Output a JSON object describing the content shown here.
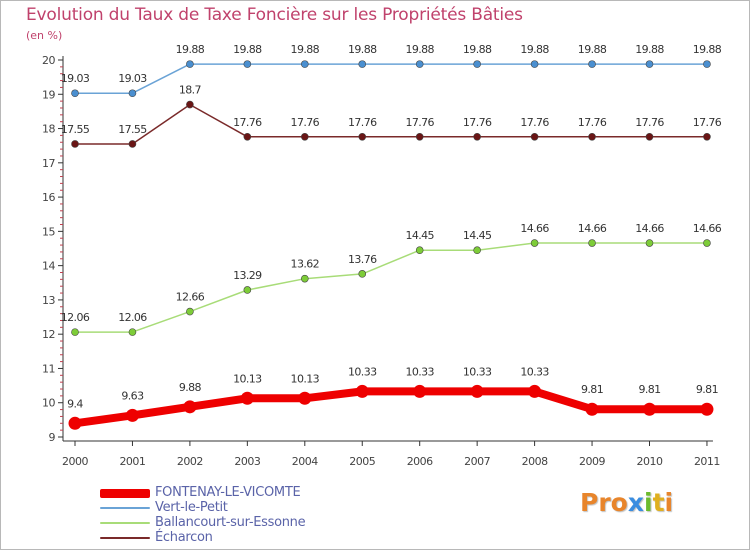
{
  "title": "Evolution du Taux de Taxe Foncière sur les Propriétés Bâties",
  "unit_label": "(en %)",
  "logo": {
    "text": "Proxiti",
    "colors": [
      "#e8852b",
      "#e8852b",
      "#e8852b",
      "#3a8de0",
      "#6cbb2e",
      "#e0b020",
      "#e8852b"
    ]
  },
  "chart_data": {
    "type": "line",
    "title": "Evolution du Taux de Taxe Foncière sur les Propriétés Bâties",
    "ylabel": "(en %)",
    "xlabel": "",
    "x": [
      "2000",
      "2001",
      "2002",
      "2003",
      "2004",
      "2005",
      "2006",
      "2007",
      "2008",
      "2009",
      "2010",
      "2011"
    ],
    "ylim": [
      9,
      20
    ],
    "yticks": [
      "9",
      "10",
      "11",
      "12",
      "13",
      "14",
      "15",
      "16",
      "17",
      "18",
      "19",
      "20"
    ],
    "series": [
      {
        "name": "FONTENAY-LE-VICOMTE",
        "color": "#ee0000",
        "thick": true,
        "values": [
          9.4,
          9.63,
          9.88,
          10.13,
          10.13,
          10.33,
          10.33,
          10.33,
          10.33,
          9.81,
          9.81,
          9.81
        ],
        "labels": [
          "9.4",
          "9.63",
          "9.88",
          "10.13",
          "10.13",
          "10.33",
          "10.33",
          "10.33",
          "10.33",
          "9.81",
          "9.81",
          "9.81"
        ]
      },
      {
        "name": "Vert-le-Petit",
        "color": "#6aa3d6",
        "marker": "#4a8fd0",
        "thick": false,
        "values": [
          19.03,
          19.03,
          19.88,
          19.88,
          19.88,
          19.88,
          19.88,
          19.88,
          19.88,
          19.88,
          19.88,
          19.88
        ],
        "labels": [
          "19.03",
          "19.03",
          "19.88",
          "19.88",
          "19.88",
          "19.88",
          "19.88",
          "19.88",
          "19.88",
          "19.88",
          "19.88",
          "19.88"
        ]
      },
      {
        "name": "Ballancourt-sur-Essonne",
        "color": "#a8dc78",
        "marker": "#7dcc38",
        "thick": false,
        "values": [
          12.06,
          12.06,
          12.66,
          13.29,
          13.62,
          13.76,
          14.45,
          14.45,
          14.66,
          14.66,
          14.66,
          14.66
        ],
        "labels": [
          "12.06",
          "12.06",
          "12.66",
          "13.29",
          "13.62",
          "13.76",
          "14.45",
          "14.45",
          "14.66",
          "14.66",
          "14.66",
          "14.66"
        ]
      },
      {
        "name": "Écharcon",
        "color": "#7a2a2a",
        "marker": "#6a1515",
        "thick": false,
        "values": [
          17.55,
          17.55,
          18.7,
          17.76,
          17.76,
          17.76,
          17.76,
          17.76,
          17.76,
          17.76,
          17.76,
          17.76
        ],
        "labels": [
          "17.55",
          "17.55",
          "18.7",
          "17.76",
          "17.76",
          "17.76",
          "17.76",
          "17.76",
          "17.76",
          "17.76",
          "17.76",
          "17.76"
        ]
      }
    ],
    "legend": [
      "FONTENAY-LE-VICOMTE",
      "Vert-le-Petit",
      "Ballancourt-sur-Essonne",
      "Écharcon"
    ],
    "legend_position": "bottom-left",
    "grid": false
  }
}
